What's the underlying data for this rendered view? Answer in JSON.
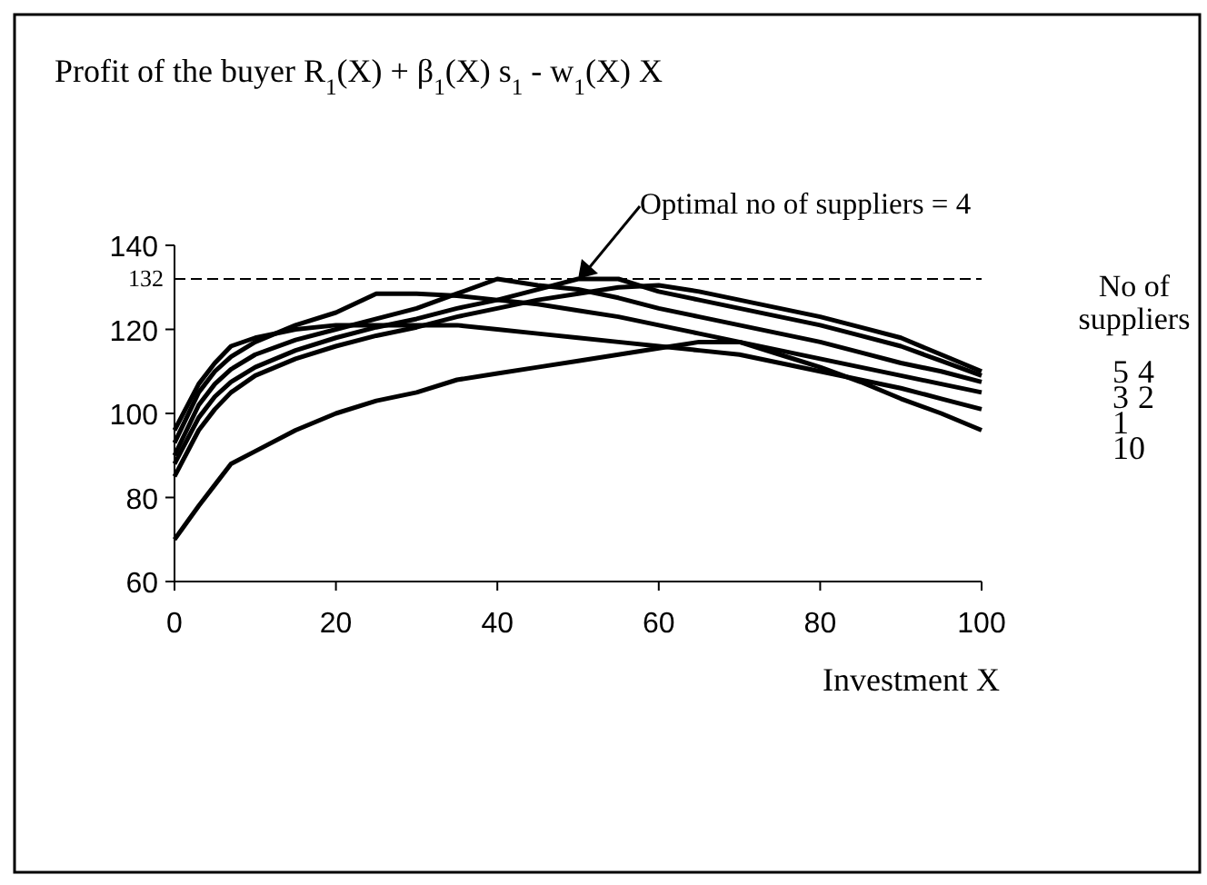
{
  "chart_data": {
    "type": "line",
    "title": "Profit of the buyer R$_{1}$(X) + β$_{1}$(X) s$_{1}$ - w$_{1}$(X) X",
    "xlabel": "Investment X",
    "legend_title": "No of suppliers",
    "x": [
      0,
      3,
      5,
      7,
      10,
      15,
      20,
      25,
      30,
      35,
      40,
      45,
      50,
      55,
      60,
      65,
      70,
      75,
      80,
      85,
      90,
      95,
      100
    ],
    "series": [
      {
        "name": "5",
        "color": "#000000",
        "values": [
          85,
          96,
          101,
          105,
          109,
          113,
          116,
          118.5,
          120.5,
          123,
          125,
          127,
          128.5,
          130,
          130.5,
          129,
          127,
          125,
          123,
          120.5,
          118,
          114,
          110
        ]
      },
      {
        "name": "4",
        "color": "#000000",
        "values": [
          88,
          99,
          104,
          107.5,
          111,
          115,
          118,
          120.5,
          122.5,
          125,
          127,
          129.5,
          132,
          132,
          129,
          127,
          125,
          123,
          121,
          118.5,
          116,
          112.5,
          109
        ]
      },
      {
        "name": "3",
        "color": "#000000",
        "values": [
          90,
          102,
          107,
          110.5,
          114,
          117.5,
          120,
          122.5,
          125,
          128.5,
          132,
          130.5,
          129.5,
          127.5,
          125,
          123,
          121,
          119,
          117,
          114.5,
          112,
          110,
          107.5
        ]
      },
      {
        "name": "2",
        "color": "#000000",
        "values": [
          93,
          105,
          110,
          113.5,
          117,
          121,
          124,
          128.5,
          128.5,
          128,
          127,
          126,
          124.5,
          123,
          121,
          119,
          117,
          115,
          113,
          111,
          109,
          107,
          105
        ]
      },
      {
        "name": "1",
        "color": "#000000",
        "values": [
          96,
          107,
          112,
          116,
          118,
          120,
          121,
          121,
          121,
          121,
          120,
          119,
          118,
          117,
          116,
          115,
          114,
          112,
          110,
          108,
          106,
          103.5,
          101
        ]
      },
      {
        "name": "10",
        "color": "#000000",
        "values": [
          70,
          78,
          83,
          88,
          91,
          96,
          100,
          103,
          105,
          108,
          109.5,
          111,
          112.5,
          114,
          115.5,
          117,
          117,
          114,
          111,
          107.5,
          103.5,
          100,
          96
        ]
      }
    ],
    "xlim": [
      0,
      100
    ],
    "ylim": [
      60,
      140
    ],
    "xticks": [
      0,
      20,
      40,
      60,
      80,
      100
    ],
    "yticks": [
      60,
      80,
      100,
      120,
      140
    ],
    "ref_lines": [
      {
        "axis": "y",
        "value": 132,
        "label": "132",
        "line_style": "dashed",
        "color": "#000000"
      }
    ],
    "annotations": [
      {
        "text": "Optimal no of suppliers = 4",
        "x": 50,
        "y": 132
      }
    ],
    "grid": false,
    "marker": "none",
    "line_style": "solid"
  }
}
